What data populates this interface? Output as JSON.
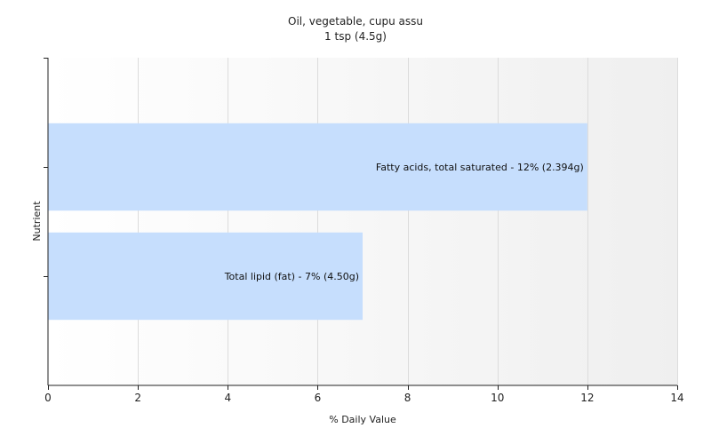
{
  "chart_data": {
    "type": "bar",
    "orientation": "horizontal",
    "title": "Oil, vegetable, cupu assu",
    "subtitle": "1 tsp (4.5g)",
    "xlabel": "% Daily Value",
    "ylabel": "Nutrient",
    "xlim": [
      0,
      14
    ],
    "xticks": [
      0,
      2,
      4,
      6,
      8,
      10,
      12,
      14
    ],
    "grid": true,
    "legend": "none",
    "bar_color": "#c6defd",
    "categories": [
      "Fatty acids, total saturated",
      "Total lipid (fat)"
    ],
    "values": [
      12,
      7
    ],
    "data_labels": [
      "Fatty acids, total saturated - 12% (2.394g)",
      "Total lipid (fat) - 7% (4.50g)"
    ]
  }
}
